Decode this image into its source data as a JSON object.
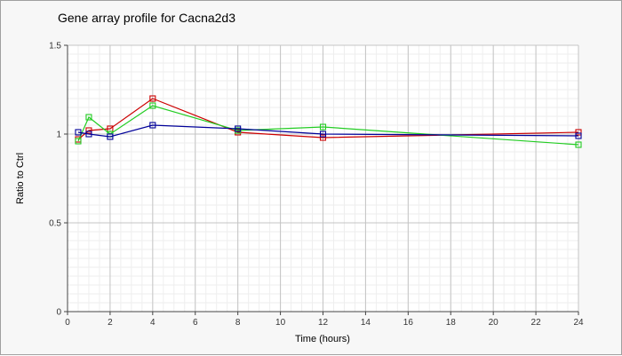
{
  "chart_data": {
    "type": "line",
    "title": "Gene array profile for Cacna2d3",
    "xlabel": "Time (hours)",
    "ylabel": "Ratio to Ctrl",
    "xlim": [
      0,
      24
    ],
    "ylim": [
      0,
      1.5
    ],
    "xticks": [
      0,
      2,
      4,
      6,
      8,
      10,
      12,
      14,
      16,
      18,
      20,
      22,
      24
    ],
    "yticks": [
      0,
      0.5,
      1,
      1.5
    ],
    "ytick_labels": [
      "0",
      "0.5",
      "1",
      "1.5"
    ],
    "grid": true,
    "series": [
      {
        "color": "#cc0000",
        "points": [
          [
            0.5,
            0.97
          ],
          [
            1,
            1.02
          ],
          [
            2,
            1.03
          ],
          [
            4,
            1.2
          ],
          [
            8,
            1.01
          ],
          [
            12,
            0.98
          ],
          [
            24,
            1.01
          ]
        ]
      },
      {
        "color": "#22cc22",
        "points": [
          [
            0.5,
            0.96
          ],
          [
            1,
            1.095
          ],
          [
            2,
            1.0
          ],
          [
            4,
            1.16
          ],
          [
            8,
            1.02
          ],
          [
            12,
            1.04
          ],
          [
            24,
            0.94
          ]
        ]
      },
      {
        "color": "#000099",
        "points": [
          [
            0.5,
            1.01
          ],
          [
            1,
            1.0
          ],
          [
            2,
            0.985
          ],
          [
            4,
            1.05
          ],
          [
            8,
            1.03
          ],
          [
            12,
            1.0
          ],
          [
            24,
            0.99
          ]
        ]
      }
    ]
  }
}
